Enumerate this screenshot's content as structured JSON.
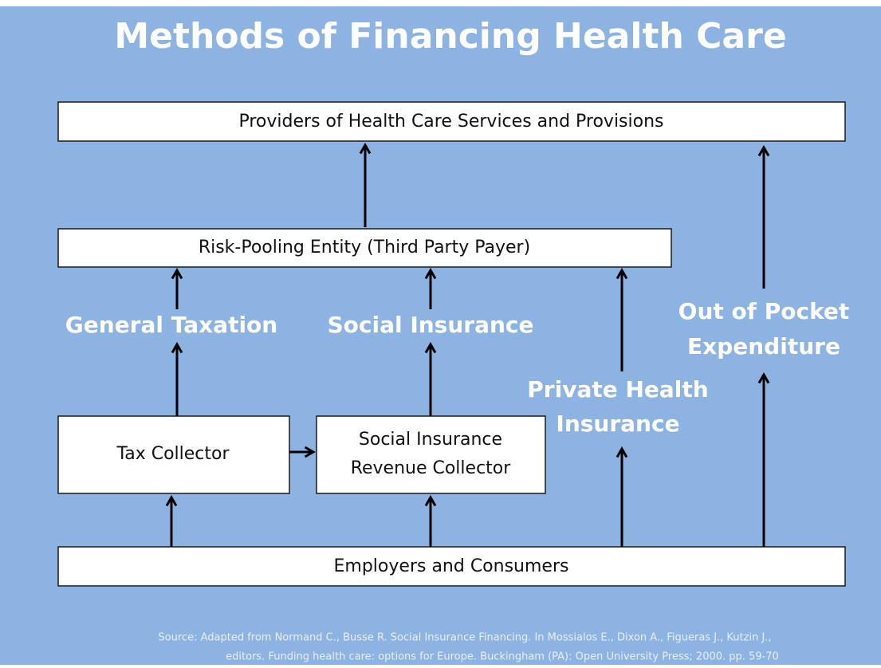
{
  "title": "Methods of Financing Health Care",
  "nodes": [
    {
      "label": "Providers of Health Care Services and Provisions"
    },
    {
      "label": "Risk-Pooling Entity (Third Party Payer)"
    },
    {
      "label": "Tax Collector"
    },
    {
      "lines": [
        "Social Insurance",
        "Revenue  Collector"
      ]
    },
    {
      "label": "Employers and Consumers"
    }
  ],
  "flows": [
    {
      "lines": [
        "General Taxation"
      ]
    },
    {
      "lines": [
        "Social Insurance"
      ]
    },
    {
      "lines": [
        "Private Health",
        "Insurance"
      ]
    },
    {
      "lines": [
        "Out of Pocket",
        "Expenditure"
      ]
    }
  ],
  "source": [
    "Source: Adapted  from  Normand C., Busse R. Social Insurance Financing. In Mossialos E., Dixon A., Figueras J., Kutzin J.,",
    "editors. Funding health care: options for Europe. Buckingham (PA): Open University Press; 2000. pp. 59-70"
  ]
}
